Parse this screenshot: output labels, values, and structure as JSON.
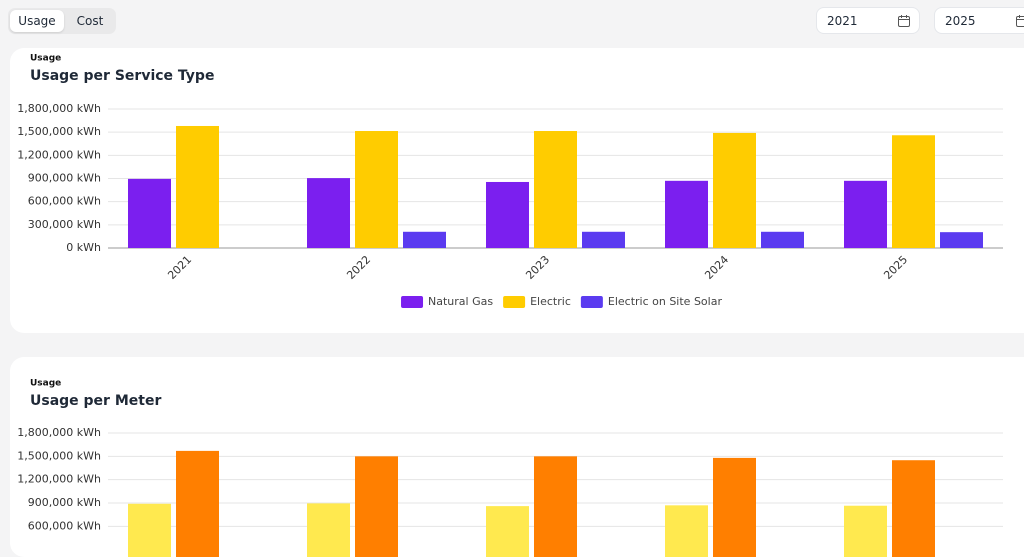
{
  "toolbar": {
    "tabs": [
      "Usage",
      "Cost"
    ],
    "active_tab": "Usage",
    "start_year": "2021",
    "end_year": "2025"
  },
  "chart_data": [
    {
      "type": "bar",
      "label": "Usage",
      "title": "Usage per Service Type",
      "categories": [
        "2021",
        "2022",
        "2023",
        "2024",
        "2025"
      ],
      "series": [
        {
          "name": "Natural Gas",
          "color": "#7b1fef",
          "values": [
            895000,
            905000,
            855000,
            870000,
            870000
          ]
        },
        {
          "name": "Electric",
          "color": "#ffcc00",
          "values": [
            1580000,
            1515000,
            1515000,
            1490000,
            1460000
          ]
        },
        {
          "name": "Electric on Site Solar",
          "color": "#5b3bf0",
          "values": [
            null,
            210000,
            210000,
            210000,
            205000
          ]
        }
      ],
      "ylim": [
        0,
        1800000
      ],
      "yticks": [
        {
          "value": 0,
          "label": "0 kWh"
        },
        {
          "value": 300000,
          "label": "300,000 kWh"
        },
        {
          "value": 600000,
          "label": "600,000 kWh"
        },
        {
          "value": 900000,
          "label": "900,000 kWh"
        },
        {
          "value": 1200000,
          "label": "1,200,000 kWh"
        },
        {
          "value": 1500000,
          "label": "1,500,000 kWh"
        },
        {
          "value": 1800000,
          "label": "1,800,000 kWh"
        }
      ],
      "grid": true,
      "legend": "bottom"
    },
    {
      "type": "bar",
      "label": "Usage",
      "title": "Usage per Meter",
      "series": [
        {
          "color": "#ffe94f",
          "values": [
            890000,
            895000,
            860000,
            870000,
            865000
          ]
        },
        {
          "color": "#ff7f00",
          "values": [
            1570000,
            1500000,
            1500000,
            1480000,
            1450000
          ]
        }
      ],
      "ylim": [
        0,
        1800000
      ],
      "yticks": [
        {
          "value": 600000,
          "label": "600,000 kWh"
        },
        {
          "value": 900000,
          "label": "900,000 kWh"
        },
        {
          "value": 1200000,
          "label": "1,200,000 kWh"
        },
        {
          "value": 1500000,
          "label": "1,500,000 kWh"
        },
        {
          "value": 1800000,
          "label": "1,800,000 kWh"
        }
      ],
      "grid": true
    }
  ]
}
